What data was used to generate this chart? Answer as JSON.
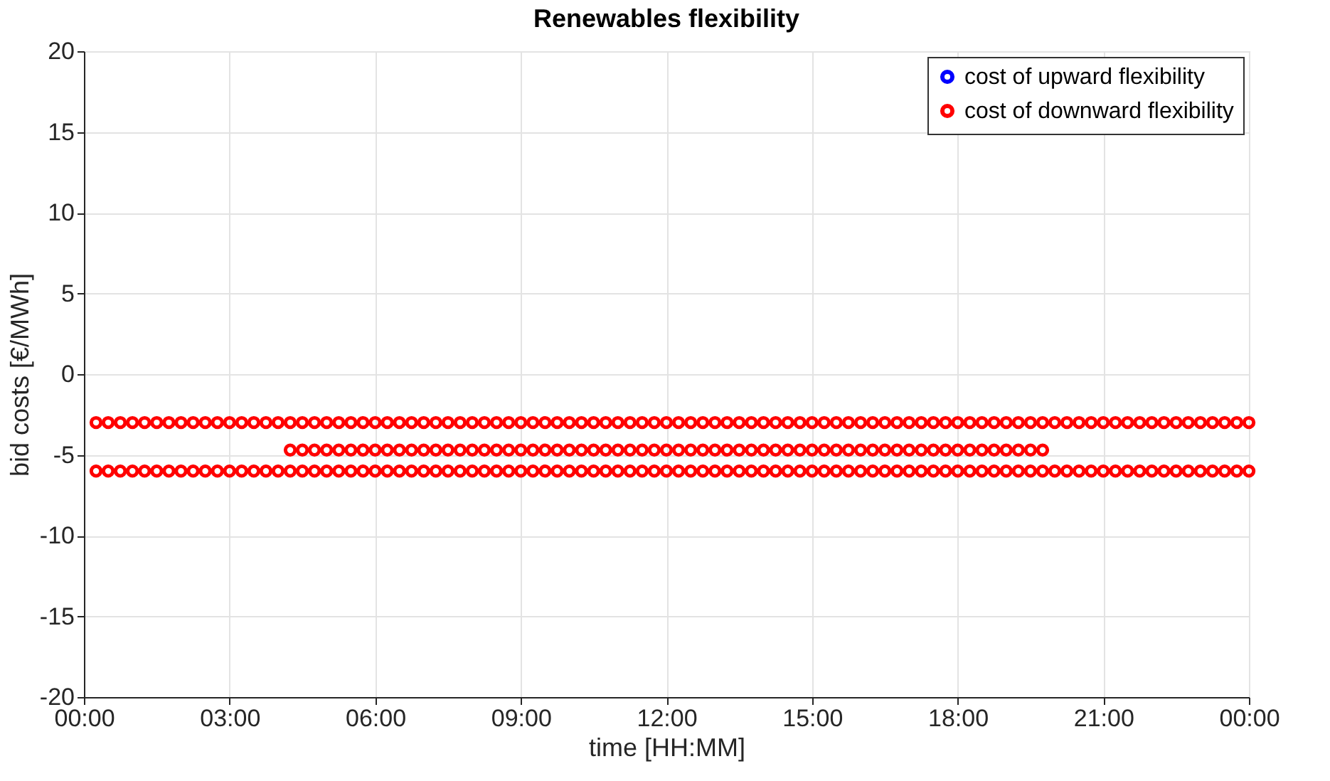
{
  "chart_data": {
    "type": "scatter",
    "title": "Renewables flexibility",
    "xlabel": "time [HH:MM]",
    "ylabel": "bid costs [€/MWh]",
    "xlim": [
      0,
      24
    ],
    "xticks": [
      {
        "value": 0,
        "label": "00:00"
      },
      {
        "value": 3,
        "label": "03:00"
      },
      {
        "value": 6,
        "label": "06:00"
      },
      {
        "value": 9,
        "label": "09:00"
      },
      {
        "value": 12,
        "label": "12:00"
      },
      {
        "value": 15,
        "label": "15:00"
      },
      {
        "value": 18,
        "label": "18:00"
      },
      {
        "value": 21,
        "label": "21:00"
      },
      {
        "value": 24,
        "label": "00:00"
      }
    ],
    "ylim": [
      -20,
      20
    ],
    "yticks": [
      -20,
      -15,
      -10,
      -5,
      0,
      5,
      10,
      15,
      20
    ],
    "grid": true,
    "legend": "top right",
    "marker": "circle",
    "series": [
      {
        "name": "cost of upward flexibility",
        "color": "#0000ff"
      },
      {
        "name": "cost of downward flexibility",
        "color": "#ff0000",
        "x": [
          0.25,
          0.5,
          0.75,
          1,
          1.25,
          1.5,
          1.75,
          2,
          2.25,
          2.5,
          2.75,
          3,
          3.25,
          3.5,
          3.75,
          4,
          4.25,
          4.5,
          4.75,
          5,
          5.25,
          5.5,
          5.75,
          6,
          6.25,
          6.5,
          6.75,
          7,
          7.25,
          7.5,
          7.75,
          8,
          8.25,
          8.5,
          8.75,
          9,
          9.25,
          9.5,
          9.75,
          10,
          10.25,
          10.5,
          10.75,
          11,
          11.25,
          11.5,
          11.75,
          12,
          12.25,
          12.5,
          12.75,
          13,
          13.25,
          13.5,
          13.75,
          14,
          14.25,
          14.5,
          14.75,
          15,
          15.25,
          15.5,
          15.75,
          16,
          16.25,
          16.5,
          16.75,
          17,
          17.25,
          17.5,
          17.75,
          18,
          18.25,
          18.5,
          18.75,
          19,
          19.25,
          19.5,
          19.75,
          20,
          20.25,
          20.5,
          20.75,
          21,
          21.25,
          21.5,
          21.75,
          22,
          22.25,
          22.5,
          22.75,
          23,
          23.25,
          23.5,
          23.75,
          24,
          0.25,
          0.5,
          0.75,
          1,
          1.25,
          1.5,
          1.75,
          2,
          2.25,
          2.5,
          2.75,
          3,
          3.25,
          3.5,
          3.75,
          4,
          4.25,
          4.5,
          4.75,
          5,
          5.25,
          5.5,
          5.75,
          6,
          6.25,
          6.5,
          6.75,
          7,
          7.25,
          7.5,
          7.75,
          8,
          8.25,
          8.5,
          8.75,
          9,
          9.25,
          9.5,
          9.75,
          10,
          10.25,
          10.5,
          10.75,
          11,
          11.25,
          11.5,
          11.75,
          12,
          12.25,
          12.5,
          12.75,
          13,
          13.25,
          13.5,
          13.75,
          14,
          14.25,
          14.5,
          14.75,
          15,
          15.25,
          15.5,
          15.75,
          16,
          16.25,
          16.5,
          16.75,
          17,
          17.25,
          17.5,
          17.75,
          18,
          18.25,
          18.5,
          18.75,
          19,
          19.25,
          19.5,
          19.75,
          20,
          20.25,
          20.5,
          20.75,
          21,
          21.25,
          21.5,
          21.75,
          22,
          22.25,
          22.5,
          22.75,
          23,
          23.25,
          23.5,
          23.75,
          24,
          4.25,
          4.5,
          4.75,
          5,
          5.25,
          5.5,
          5.75,
          6,
          6.25,
          6.5,
          6.75,
          7,
          7.25,
          7.5,
          7.75,
          8,
          8.25,
          8.5,
          8.75,
          9,
          9.25,
          9.5,
          9.75,
          10,
          10.25,
          10.5,
          10.75,
          11,
          11.25,
          11.5,
          11.75,
          12,
          12.25,
          12.5,
          12.75,
          13,
          13.25,
          13.5,
          13.75,
          14,
          14.25,
          14.5,
          14.75,
          15,
          15.25,
          15.5,
          15.75,
          16,
          16.25,
          16.5,
          16.75,
          17,
          17.25,
          17.5,
          17.75,
          18,
          18.25,
          18.5,
          18.75,
          19,
          19.25,
          19.5,
          19.75
        ],
        "values": [
          -3,
          -3,
          -3,
          -3,
          -3,
          -3,
          -3,
          -3,
          -3,
          -3,
          -3,
          -3,
          -3,
          -3,
          -3,
          -3,
          -3,
          -3,
          -3,
          -3,
          -3,
          -3,
          -3,
          -3,
          -3,
          -3,
          -3,
          -3,
          -3,
          -3,
          -3,
          -3,
          -3,
          -3,
          -3,
          -3,
          -3,
          -3,
          -3,
          -3,
          -3,
          -3,
          -3,
          -3,
          -3,
          -3,
          -3,
          -3,
          -3,
          -3,
          -3,
          -3,
          -3,
          -3,
          -3,
          -3,
          -3,
          -3,
          -3,
          -3,
          -3,
          -3,
          -3,
          -3,
          -3,
          -3,
          -3,
          -3,
          -3,
          -3,
          -3,
          -3,
          -3,
          -3,
          -3,
          -3,
          -3,
          -3,
          -3,
          -3,
          -3,
          -3,
          -3,
          -3,
          -3,
          -3,
          -3,
          -3,
          -3,
          -3,
          -3,
          -3,
          -3,
          -3,
          -3,
          -3,
          -6,
          -6,
          -6,
          -6,
          -6,
          -6,
          -6,
          -6,
          -6,
          -6,
          -6,
          -6,
          -6,
          -6,
          -6,
          -6,
          -6,
          -6,
          -6,
          -6,
          -6,
          -6,
          -6,
          -6,
          -6,
          -6,
          -6,
          -6,
          -6,
          -6,
          -6,
          -6,
          -6,
          -6,
          -6,
          -6,
          -6,
          -6,
          -6,
          -6,
          -6,
          -6,
          -6,
          -6,
          -6,
          -6,
          -6,
          -6,
          -6,
          -6,
          -6,
          -6,
          -6,
          -6,
          -6,
          -6,
          -6,
          -6,
          -6,
          -6,
          -6,
          -6,
          -6,
          -6,
          -6,
          -6,
          -6,
          -6,
          -6,
          -6,
          -6,
          -6,
          -6,
          -6,
          -6,
          -6,
          -6,
          -6,
          -6,
          -6,
          -6,
          -6,
          -6,
          -6,
          -6,
          -6,
          -6,
          -6,
          -6,
          -6,
          -6,
          -6,
          -6,
          -6,
          -6,
          -6,
          -4.7,
          -4.7,
          -4.7,
          -4.7,
          -4.7,
          -4.7,
          -4.7,
          -4.7,
          -4.7,
          -4.7,
          -4.7,
          -4.7,
          -4.7,
          -4.7,
          -4.7,
          -4.7,
          -4.7,
          -4.7,
          -4.7,
          -4.7,
          -4.7,
          -4.7,
          -4.7,
          -4.7,
          -4.7,
          -4.7,
          -4.7,
          -4.7,
          -4.7,
          -4.7,
          -4.7,
          -4.7,
          -4.7,
          -4.7,
          -4.7,
          -4.7,
          -4.7,
          -4.7,
          -4.7,
          -4.7,
          -4.7,
          -4.7,
          -4.7,
          -4.7,
          -4.7,
          -4.7,
          -4.7,
          -4.7,
          -4.7,
          -4.7,
          -4.7,
          -4.7,
          -4.7,
          -4.7,
          -4.7,
          -4.7,
          -4.7,
          -4.7,
          -4.7,
          -4.7,
          -4.7,
          -4.7,
          -4.7
        ]
      }
    ]
  }
}
